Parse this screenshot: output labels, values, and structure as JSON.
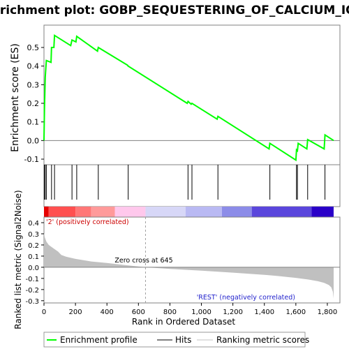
{
  "chart_data": {
    "type": "line",
    "title": "Enrichment plot: GOBP_SEQUESTERING_OF_CALCIUM_ION",
    "xlabel": "Rank in Ordered Dataset",
    "xlim": [
      0,
      1880
    ],
    "x_ticks": [
      "0",
      "200",
      "400",
      "600",
      "800",
      "1,000",
      "1,200",
      "1,400",
      "1,600",
      "1,800"
    ],
    "x_tick_values": [
      0,
      200,
      400,
      600,
      800,
      1000,
      1200,
      1400,
      1600,
      1800
    ],
    "es_panel": {
      "ylabel": "Enrichment score (ES)",
      "ylim": [
        -0.13,
        0.62
      ],
      "y_ticks": [
        "-0.1",
        "0.0",
        "0.1",
        "0.2",
        "0.3",
        "0.4",
        "0.5"
      ],
      "y_tick_values": [
        -0.1,
        0.0,
        0.1,
        0.2,
        0.3,
        0.4,
        0.5
      ],
      "series": [
        {
          "name": "Enrichment profile",
          "color": "#00ff00",
          "x": [
            0,
            3,
            8,
            15,
            45,
            48,
            63,
            67,
            170,
            178,
            203,
            208,
            340,
            345,
            530,
            535,
            910,
            915,
            935,
            940,
            1100,
            1105,
            1430,
            1435,
            1600,
            1604,
            1610,
            1615,
            1670,
            1675,
            1780,
            1785,
            1840
          ],
          "y": [
            0.0,
            0.17,
            0.34,
            0.43,
            0.42,
            0.5,
            0.5,
            0.565,
            0.51,
            0.54,
            0.53,
            0.56,
            0.48,
            0.5,
            0.405,
            0.4,
            0.2,
            0.21,
            0.195,
            0.2,
            0.115,
            0.13,
            -0.045,
            -0.015,
            -0.105,
            -0.05,
            -0.055,
            -0.015,
            -0.045,
            0.005,
            -0.045,
            0.03,
            0.0
          ]
        }
      ]
    },
    "hits": [
      2,
      8,
      15,
      48,
      67,
      178,
      208,
      345,
      535,
      915,
      940,
      1105,
      1435,
      1604,
      1610,
      1675,
      1785
    ],
    "rank_bar": {
      "segments": [
        {
          "x0": 0,
          "x1": 30,
          "color": "#e60000"
        },
        {
          "x0": 30,
          "x1": 200,
          "color": "#ff5050"
        },
        {
          "x0": 200,
          "x1": 300,
          "color": "#ff7777"
        },
        {
          "x0": 300,
          "x1": 450,
          "color": "#ff9a9a"
        },
        {
          "x0": 450,
          "x1": 645,
          "color": "#ffc8ec"
        },
        {
          "x0": 645,
          "x1": 900,
          "color": "#d7d7f7"
        },
        {
          "x0": 900,
          "x1": 1130,
          "color": "#b9b9f3"
        },
        {
          "x0": 1130,
          "x1": 1320,
          "color": "#8c8ce8"
        },
        {
          "x0": 1320,
          "x1": 1700,
          "color": "#5a46dc"
        },
        {
          "x0": 1700,
          "x1": 1840,
          "color": "#2a00c8"
        }
      ]
    },
    "metric_panel": {
      "ylabel": "Ranked list metric (Signal2Noise)",
      "ylim": [
        -0.32,
        0.45
      ],
      "y_ticks": [
        "-0.3",
        "-0.2",
        "-0.1",
        "0.0",
        "0.1",
        "0.2",
        "0.3",
        "0.4"
      ],
      "y_tick_values": [
        -0.3,
        -0.2,
        -0.1,
        0.0,
        0.1,
        0.2,
        0.3,
        0.4
      ],
      "fill_color": "#c0c0c0",
      "x": [
        0,
        5,
        15,
        30,
        60,
        90,
        110,
        140,
        200,
        300,
        400,
        500,
        645,
        800,
        1000,
        1200,
        1400,
        1500,
        1600,
        1680,
        1740,
        1780,
        1810,
        1825,
        1835,
        1840
      ],
      "y": [
        0.31,
        0.27,
        0.23,
        0.2,
        0.17,
        0.14,
        0.11,
        0.095,
        0.075,
        0.052,
        0.038,
        0.022,
        0.0,
        -0.015,
        -0.03,
        -0.048,
        -0.068,
        -0.08,
        -0.095,
        -0.11,
        -0.125,
        -0.14,
        -0.16,
        -0.18,
        -0.22,
        -0.28
      ],
      "zero_cross_label": "Zero cross at 645",
      "zero_cross_rank": 645,
      "pos_label": "'2' (positively correlated)",
      "neg_label": "'REST' (negatively correlated)"
    },
    "legend": {
      "position": "bottom",
      "entries": [
        {
          "label": "Enrichment profile",
          "color": "#00ff00"
        },
        {
          "label": "Hits",
          "color": "#000000"
        },
        {
          "label": "Ranking metric scores",
          "color": "#c0c0c0"
        }
      ]
    }
  }
}
